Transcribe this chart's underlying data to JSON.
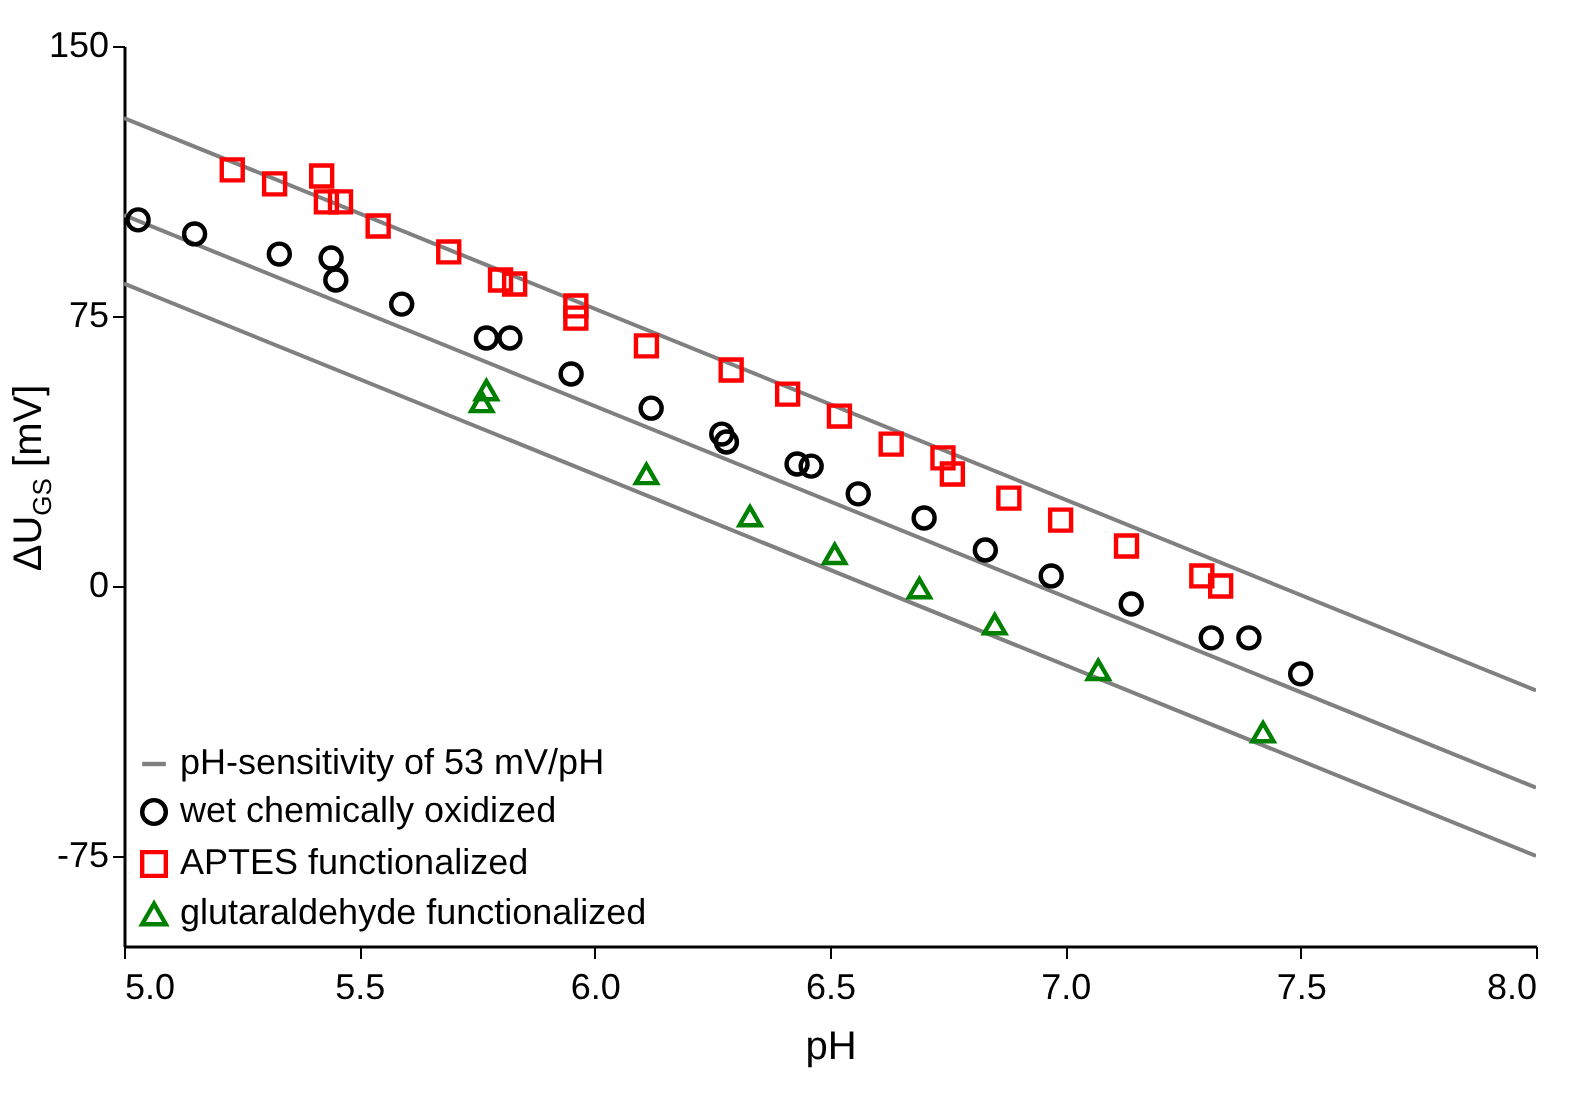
{
  "chart_data": {
    "type": "scatter",
    "xlabel": "pH",
    "ylabel": "ΔU$_{GS}$ [mV]",
    "xlim": [
      5.0,
      8.0
    ],
    "xticks": [
      {
        "value": 5,
        "label": "5.0"
      },
      {
        "value": 5.5,
        "label": "5.5"
      },
      {
        "value": 6,
        "label": "6.0"
      },
      {
        "value": 6.5,
        "label": "6.5"
      },
      {
        "value": 7,
        "label": "7.0"
      },
      {
        "value": 7.5,
        "label": "7.5"
      },
      {
        "value": 8,
        "label": "8.0"
      }
    ],
    "ylim": [
      -100,
      150
    ],
    "yticks": [
      -75,
      0,
      75,
      150
    ],
    "grid": false,
    "legend": "bottom left",
    "series": [
      {
        "name": "pH-sensitivity of 53 mV/pH",
        "type": "line",
        "color": "#808080",
        "x": [
          5.0,
          8.0
        ],
        "values": [
          130,
          -29
        ]
      },
      {
        "type": "line",
        "color": "#808080",
        "x": [
          5.0,
          8.0
        ],
        "values": [
          103,
          -56
        ]
      },
      {
        "type": "line",
        "color": "#808080",
        "x": [
          5.0,
          8.0
        ],
        "values": [
          84,
          -75
        ]
      },
      {
        "name": "wet chemically oxidized",
        "marker": "circle",
        "color": "#000000",
        "x": [
          5.03,
          5.15,
          5.33,
          5.44,
          5.45,
          5.59,
          5.77,
          5.82,
          5.95,
          6.12,
          6.27,
          6.28,
          6.43,
          6.46,
          6.56,
          6.7,
          6.83,
          6.97,
          7.14,
          7.31,
          7.39,
          7.5
        ],
        "values": [
          101.7,
          97.8,
          92.2,
          91.1,
          85,
          78.3,
          68.9,
          68.9,
          58.9,
          49.4,
          42.2,
          40,
          33.9,
          33.3,
          25.6,
          18.9,
          10,
          2.8,
          -5,
          -14.4,
          -14.4,
          -24.4
        ]
      },
      {
        "name": "APTES functionalized",
        "marker": "square",
        "color": "#ff0000",
        "x": [
          5.23,
          5.32,
          5.42,
          5.43,
          5.46,
          5.54,
          5.69,
          5.8,
          5.83,
          5.96,
          5.96,
          6.11,
          6.29,
          6.41,
          6.52,
          6.63,
          6.74,
          6.76,
          6.88,
          6.99,
          7.13,
          7.29,
          7.33
        ],
        "values": [
          115.6,
          111.7,
          113.9,
          106.7,
          106.7,
          100,
          92.8,
          85,
          83.9,
          77.8,
          74.4,
          66.7,
          60,
          53.3,
          47.2,
          39.4,
          35.6,
          31.1,
          24.4,
          18.3,
          11.1,
          2.8,
          0
        ]
      },
      {
        "name": "glutaraldehyde functionalized",
        "marker": "triangle",
        "color": "#008000",
        "x": [
          5.77,
          5.76,
          6.11,
          6.33,
          6.51,
          6.69,
          6.85,
          7.07,
          7.42
        ],
        "values": [
          54.4,
          51.1,
          31.1,
          19.4,
          8.9,
          -0.6,
          -10.6,
          -23.3,
          -40.6
        ]
      }
    ]
  }
}
